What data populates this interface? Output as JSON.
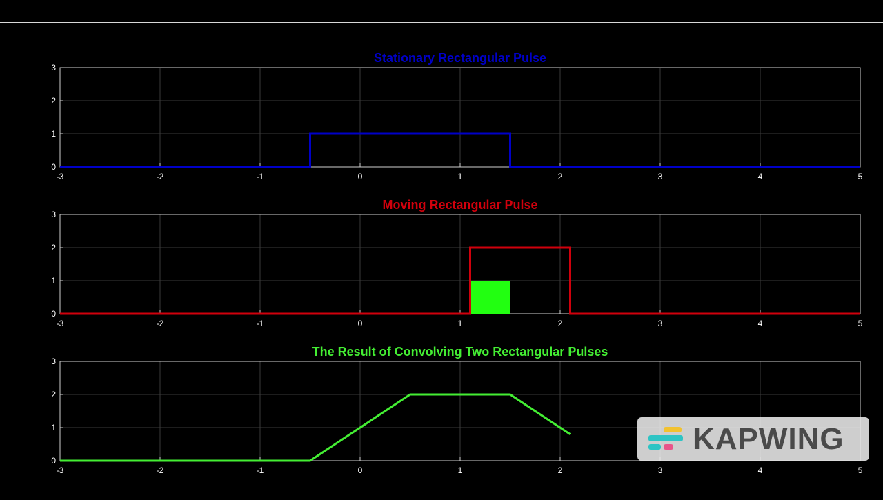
{
  "chart_data": [
    {
      "type": "line",
      "title": "Stationary Rectangular Pulse",
      "title_color": "#0000c8",
      "line_color": "#0000c8",
      "xlim": [
        -3,
        5
      ],
      "ylim": [
        0,
        3
      ],
      "xticks": [
        -3,
        -2,
        -1,
        0,
        1,
        2,
        3,
        4,
        5
      ],
      "yticks": [
        0,
        1,
        2,
        3
      ],
      "grid": true,
      "series": [
        {
          "x": [
            -3,
            -0.5,
            -0.5,
            1.5,
            1.5,
            5
          ],
          "y": [
            0,
            0,
            1,
            1,
            0,
            0
          ]
        }
      ]
    },
    {
      "type": "line",
      "title": "Moving Rectangular Pulse",
      "title_color": "#d0000c",
      "line_color": "#d0000c",
      "xlim": [
        -3,
        5
      ],
      "ylim": [
        0,
        3
      ],
      "xticks": [
        -3,
        -2,
        -1,
        0,
        1,
        2,
        3,
        4,
        5
      ],
      "yticks": [
        0,
        1,
        2,
        3
      ],
      "grid": true,
      "series": [
        {
          "x": [
            -3,
            1.1,
            1.1,
            2.1,
            2.1,
            5
          ],
          "y": [
            0,
            0,
            2,
            2,
            0,
            0
          ]
        }
      ],
      "overlap_region": {
        "x0": 1.1,
        "x1": 1.5,
        "y0": 0,
        "y1": 1,
        "color": "#22ff11"
      }
    },
    {
      "type": "line",
      "title": "The Result of Convolving Two Rectangular Pulses",
      "title_color": "#44ee33",
      "line_color": "#44ee33",
      "xlim": [
        -3,
        5
      ],
      "ylim": [
        0,
        3
      ],
      "xticks": [
        -3,
        -2,
        -1,
        0,
        1,
        2,
        3,
        4,
        5
      ],
      "yticks": [
        0,
        1,
        2,
        3
      ],
      "grid": true,
      "series": [
        {
          "x": [
            -3,
            -0.5,
            0.5,
            1.5,
            2.1
          ],
          "y": [
            0,
            0,
            2,
            2,
            0.8
          ]
        }
      ]
    }
  ],
  "watermark": {
    "text": "KAPWING"
  }
}
